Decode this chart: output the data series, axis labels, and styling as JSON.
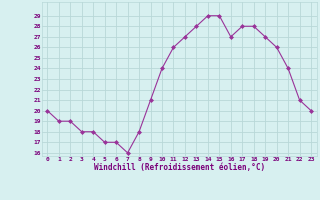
{
  "x": [
    0,
    1,
    2,
    3,
    4,
    5,
    6,
    7,
    8,
    9,
    10,
    11,
    12,
    13,
    14,
    15,
    16,
    17,
    18,
    19,
    20,
    21,
    22,
    23
  ],
  "y": [
    20,
    19,
    19,
    18,
    18,
    17,
    17,
    16,
    18,
    21,
    24,
    26,
    27,
    28,
    29,
    29,
    27,
    28,
    28,
    27,
    26,
    24,
    21,
    20
  ],
  "line_color": "#993399",
  "marker": "D",
  "marker_size": 2.0,
  "bg_color": "#d7f0f0",
  "grid_color": "#b8d8d8",
  "xlabel": "Windchill (Refroidissement éolien,°C)",
  "ylim": [
    16,
    30
  ],
  "xlim": [
    -0.5,
    23.5
  ],
  "yticks": [
    16,
    17,
    18,
    19,
    20,
    21,
    22,
    23,
    24,
    25,
    26,
    27,
    28,
    29
  ],
  "xticks": [
    0,
    1,
    2,
    3,
    4,
    5,
    6,
    7,
    8,
    9,
    10,
    11,
    12,
    13,
    14,
    15,
    16,
    17,
    18,
    19,
    20,
    21,
    22,
    23
  ],
  "tick_color": "#7a007a",
  "axis_label_color": "#7a007a"
}
